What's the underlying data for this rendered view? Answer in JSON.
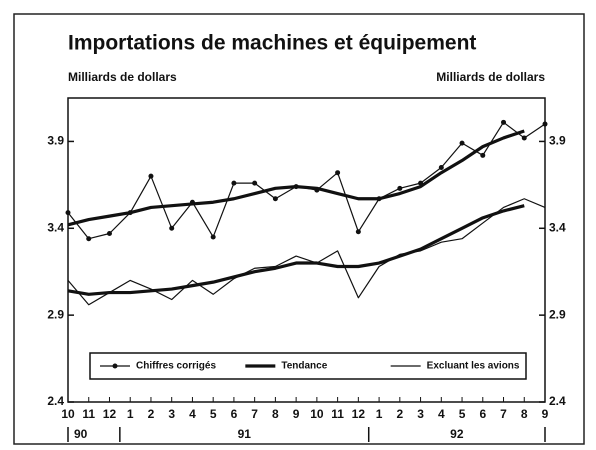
{
  "chart_data": {
    "type": "line",
    "title": "Importations de machines et équipement",
    "y_label": "Milliards de dollars",
    "y2_label": "Milliards de dollars",
    "categories": [
      "10",
      "11",
      "12",
      "1",
      "2",
      "3",
      "4",
      "5",
      "6",
      "7",
      "8",
      "9",
      "10",
      "11",
      "12",
      "1",
      "2",
      "3",
      "4",
      "5",
      "6",
      "7",
      "8",
      "9"
    ],
    "years": [
      "90",
      "91",
      "92"
    ],
    "ylim": [
      2.4,
      4.15
    ],
    "yticks": [
      2.4,
      2.9,
      3.4,
      3.9
    ],
    "y2lim": [
      2.4,
      4.15
    ],
    "y2ticks": [
      2.4,
      2.9,
      3.4,
      3.9
    ],
    "legend": "bottom",
    "series": [
      {
        "name": "Chiffres corrigés",
        "color": "#111",
        "line_width": 1.2,
        "markers": true,
        "values": [
          3.49,
          3.34,
          3.37,
          3.49,
          3.7,
          3.4,
          3.55,
          3.35,
          3.66,
          3.66,
          3.57,
          3.64,
          3.62,
          3.72,
          3.38,
          3.57,
          3.63,
          3.66,
          3.75,
          3.89,
          3.82,
          4.01,
          3.92,
          4.0
        ]
      },
      {
        "name": "Tendance",
        "color": "#111",
        "line_width": 3.2,
        "markers": false,
        "values": [
          3.42,
          3.45,
          3.47,
          3.49,
          3.52,
          3.53,
          3.54,
          3.55,
          3.57,
          3.6,
          3.63,
          3.64,
          3.63,
          3.6,
          3.57,
          3.57,
          3.6,
          3.64,
          3.72,
          3.79,
          3.87,
          3.92,
          3.96,
          null
        ]
      },
      {
        "name": "Excluant les avions",
        "color": "#111",
        "line_width": 1.2,
        "markers": false,
        "values": [
          3.1,
          2.96,
          3.03,
          3.1,
          3.05,
          2.99,
          3.1,
          3.02,
          3.11,
          3.17,
          3.18,
          3.24,
          3.2,
          3.27,
          3.0,
          3.18,
          3.25,
          3.27,
          3.32,
          3.34,
          3.43,
          3.52,
          3.57,
          3.52
        ]
      },
      {
        "color": "#111",
        "line_width": 3.2,
        "markers": false,
        "values": [
          3.04,
          3.02,
          3.03,
          3.03,
          3.04,
          3.05,
          3.07,
          3.09,
          3.12,
          3.15,
          3.17,
          3.2,
          3.2,
          3.18,
          3.18,
          3.2,
          3.24,
          3.28,
          3.34,
          3.4,
          3.46,
          3.5,
          3.53,
          null
        ]
      }
    ]
  }
}
